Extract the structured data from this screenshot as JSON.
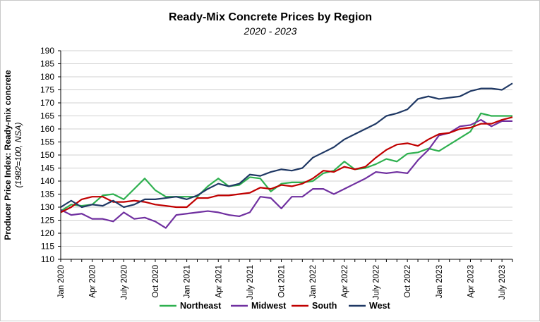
{
  "chart_data": {
    "type": "line",
    "title": "Ready-Mix Concrete Prices by Region",
    "subtitle": "2020 - 2023",
    "ylabel": "Producer Price Index: Ready-mix concrete",
    "ylabel_note": "(1982=100, NSA)",
    "xlabel": "",
    "ylim": [
      110,
      190
    ],
    "y_ticks": [
      110,
      115,
      120,
      125,
      130,
      135,
      140,
      145,
      150,
      155,
      160,
      165,
      170,
      175,
      180,
      185,
      190
    ],
    "grid": "horizontal",
    "legend_position": "bottom",
    "x": [
      "Jan 2020",
      "Feb 2020",
      "Mar 2020",
      "Apr 2020",
      "May 2020",
      "Jun 2020",
      "Jul 2020",
      "Aug 2020",
      "Sep 2020",
      "Oct 2020",
      "Nov 2020",
      "Dec 2020",
      "Jan 2021",
      "Feb 2021",
      "Mar 2021",
      "Apr 2021",
      "May 2021",
      "Jun 2021",
      "Jul 2021",
      "Aug 2021",
      "Sep 2021",
      "Oct 2021",
      "Nov 2021",
      "Dec 2021",
      "Jan 2022",
      "Feb 2022",
      "Mar 2022",
      "Apr 2022",
      "May 2022",
      "Jun 2022",
      "Jul 2022",
      "Aug 2022",
      "Sep 2022",
      "Oct 2022",
      "Nov 2022",
      "Dec 2022",
      "Jan 2023",
      "Feb 2023",
      "Mar 2023",
      "Apr 2023",
      "May 2023",
      "Jun 2023",
      "Jul 2023",
      "Aug 2023"
    ],
    "x_tick_labels": [
      "Jan 2020",
      "Apr 2020",
      "July 2020",
      "Oct 2020",
      "Jan 2021",
      "Apr 2021",
      "July 2021",
      "Oct 2021",
      "Jan 2022",
      "Apr 2022",
      "July 2022",
      "Oct 2022",
      "Jan 2023",
      "Apr 2023",
      "July 2023"
    ],
    "series": [
      {
        "name": "Northeast",
        "color": "#2eb04f",
        "values": [
          128.5,
          131,
          130.5,
          131,
          134.5,
          135,
          133,
          137,
          141,
          136.5,
          134,
          134,
          134,
          134,
          138,
          141,
          138,
          138.5,
          141.5,
          141,
          136,
          139,
          139.5,
          139.5,
          140,
          143,
          144,
          147.5,
          144.5,
          145,
          146.5,
          148.5,
          147.5,
          150.5,
          151,
          152.5,
          151.5,
          154,
          156.5,
          159,
          166,
          165,
          165,
          165
        ]
      },
      {
        "name": "Midwest",
        "color": "#7030a0",
        "values": [
          129,
          127,
          127.5,
          125.5,
          125.5,
          124.5,
          128,
          125.5,
          126,
          124.5,
          122,
          127,
          127.5,
          128,
          128.5,
          128,
          127,
          126.5,
          128,
          134,
          133.5,
          129.5,
          134,
          134,
          137,
          137,
          135,
          137,
          139,
          141,
          143.5,
          143,
          143.5,
          143,
          148,
          152,
          157.5,
          158.5,
          161,
          161.5,
          163.5,
          161,
          163,
          163
        ]
      },
      {
        "name": "South",
        "color": "#c00000",
        "values": [
          128,
          130,
          133,
          134,
          134,
          132,
          132,
          132.5,
          132,
          131,
          130.5,
          130,
          130,
          133.5,
          133.5,
          134.5,
          134.5,
          135,
          135.5,
          137.5,
          137,
          138.5,
          138,
          139,
          141,
          144,
          143.5,
          145.5,
          144.5,
          145.5,
          149,
          152,
          154,
          154.5,
          153.5,
          156,
          158,
          158.5,
          160,
          160.5,
          162,
          162,
          163.5,
          164.5
        ]
      },
      {
        "name": "West",
        "color": "#1f3864",
        "values": [
          130,
          132.5,
          130,
          131,
          130.5,
          132.5,
          130,
          131,
          133,
          133,
          133.5,
          134,
          133,
          134.5,
          137,
          139,
          138,
          139,
          142.5,
          142,
          143.5,
          144.5,
          144,
          145,
          149,
          151,
          153,
          156,
          158,
          160,
          162,
          165,
          166,
          167.5,
          171.5,
          172.5,
          171.5,
          172,
          172.5,
          174.5,
          175.5,
          175.5,
          175,
          177.5
        ]
      }
    ]
  }
}
